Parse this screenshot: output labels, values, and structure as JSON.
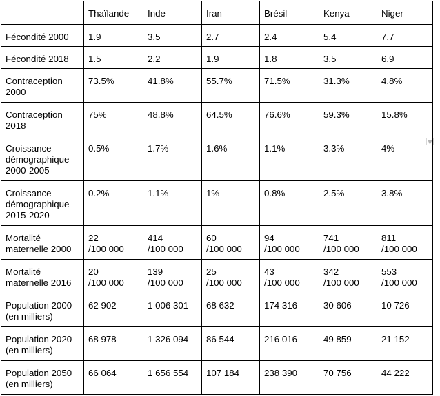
{
  "table": {
    "header": [
      "",
      "Thaïlande",
      "Inde",
      "Iran",
      "Brésil",
      "Kenya",
      "Niger"
    ],
    "rows": [
      [
        "Fécondité 2000",
        "1.9",
        "3.5",
        "2.7",
        "2.4",
        "5.4",
        "7.7"
      ],
      [
        "Fécondité 2018",
        "1.5",
        "2.2",
        "1.9",
        "1.8",
        "3.5",
        "6.9"
      ],
      [
        "Contraception\n2000",
        "73.5%",
        "41.8%",
        "55.7%",
        "71.5%",
        "31.3%",
        "4.8%"
      ],
      [
        "Contraception\n2018",
        "75%",
        "48.8%",
        "64.5%",
        "76.6%",
        "59.3%",
        "15.8%"
      ],
      [
        "Croissance\ndémographique\n2000-2005",
        "0.5%",
        "1.7%",
        "1.6%",
        "1.1%",
        "3.3%",
        "4%"
      ],
      [
        "Croissance\ndémographique\n2015-2020",
        "0.2%",
        "1.1%",
        "1%",
        "0.8%",
        "2.5%",
        "3.8%"
      ],
      [
        "Mortalité\nmaternelle 2000",
        "22\n/100 000",
        "414\n/100 000",
        "60\n/100 000",
        "94\n/100 000",
        "741\n/100 000",
        "811\n/100 000"
      ],
      [
        "Mortalité\nmaternelle 2016",
        "20\n/100 000",
        "139\n/100 000",
        "25\n/100 000",
        "43\n/100 000",
        "342\n/100 000",
        "553\n/100 000"
      ],
      [
        "Population 2000\n(en milliers)",
        "62 902",
        "1 006 301",
        "68 632",
        "174 316",
        "30 606",
        "10 726"
      ],
      [
        "Population 2020\n(en milliers)",
        "68 978",
        "1 326 094",
        "86 544",
        "216 016",
        "49 859",
        "21 152"
      ],
      [
        "Population 2050\n(en milliers)",
        "66 064",
        "1 656 554",
        "107 184",
        "238 390",
        "70 756",
        "44 222"
      ]
    ]
  },
  "scroll_icon": "chevron-down-icon"
}
